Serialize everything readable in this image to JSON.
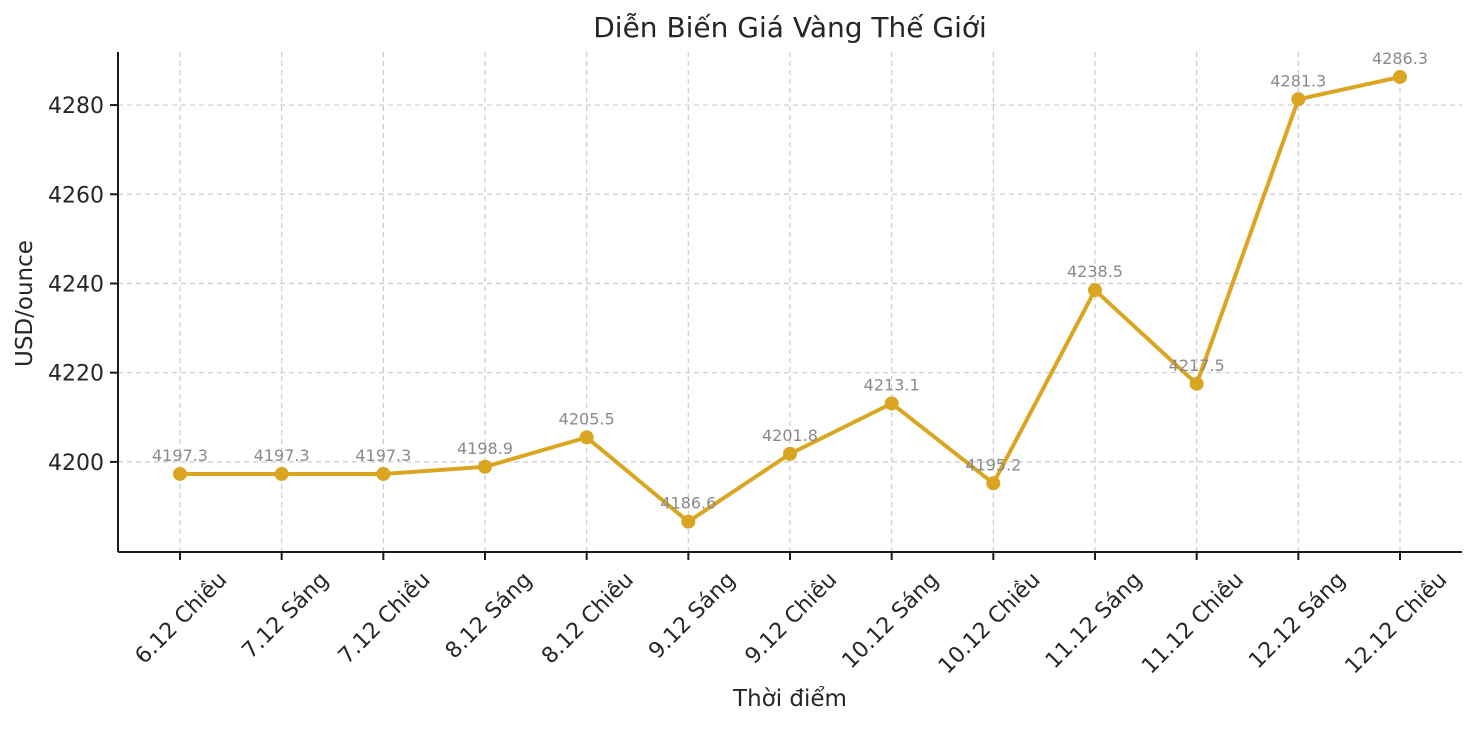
{
  "chart_data": {
    "type": "line",
    "title": "Diễn Biến Giá Vàng Thế Giới",
    "xlabel": "Thời điểm",
    "ylabel": "USD/ounce",
    "categories": [
      "6.12 Chiều",
      "7.12 Sáng",
      "7.12 Chiều",
      "8.12 Sáng",
      "8.12 Chiều",
      "9.12 Sáng",
      "9.12 Chiều",
      "10.12 Sáng",
      "10.12 Chiều",
      "11.12 Sáng",
      "11.12 Chiều",
      "12.12 Sáng",
      "12.12 Chiều"
    ],
    "values": [
      4197.3,
      4197.3,
      4197.3,
      4198.9,
      4205.5,
      4186.6,
      4201.8,
      4213.1,
      4195.2,
      4238.5,
      4217.5,
      4281.3,
      4286.3
    ],
    "point_labels": [
      "4197.3",
      "4197.3",
      "4197.3",
      "4198.9",
      "4205.5",
      "4186.6",
      "4201.8",
      "4213.1",
      "4195.2",
      "4238.5",
      "4217.5",
      "4281.3",
      "4286.3"
    ],
    "yticks": [
      4200,
      4220,
      4240,
      4260,
      4280
    ],
    "ylim": [
      4179.8,
      4291.9
    ],
    "x_tick_rotation": 45,
    "grid": "dashed-both-axes",
    "legend_position": "none",
    "colors": {
      "line": "#DAA520",
      "marker": "#DAA520",
      "annotation": "#8a8a8a",
      "grid": "#cbcbcb",
      "axis": "#1a1a1a",
      "text": "#262626"
    }
  }
}
